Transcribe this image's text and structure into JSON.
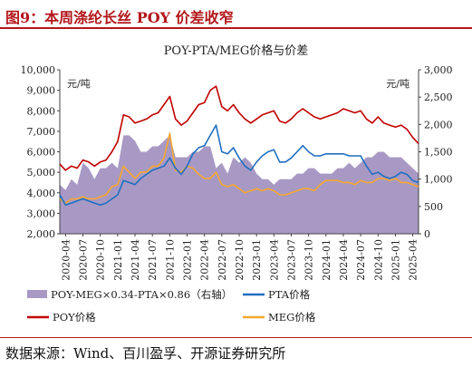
{
  "figure_title": "图9：本周涤纶长丝 POY 价差收窄",
  "source": "数据来源：Wind、百川盈孚、开源证券研究所",
  "chart_data": {
    "type": "line",
    "title": "POY-PTA/MEG价格与价差",
    "left_unit": "元/吨",
    "right_unit": "元/吨",
    "ylim_left": [
      2000,
      10000
    ],
    "ylim_right": [
      0,
      3000
    ],
    "left_ticks": [
      "2,000",
      "3,000",
      "4,000",
      "5,000",
      "6,000",
      "7,000",
      "8,000",
      "9,000",
      "10,000"
    ],
    "right_ticks": [
      "0",
      "500",
      "1,000",
      "1,500",
      "2,000",
      "2,500",
      "3,000"
    ],
    "x_ticks": [
      "2020-04",
      "2020-07",
      "2020-10",
      "2021-01",
      "2021-04",
      "2021-07",
      "2021-10",
      "2022-01",
      "2022-04",
      "2022-07",
      "2022-10",
      "2023-01",
      "2023-04",
      "2023-07",
      "2023-10",
      "2024-01",
      "2024-04",
      "2024-07",
      "2024-10",
      "2025-01",
      "2025-04"
    ],
    "x_range": [
      "2020-03",
      "2025-05"
    ],
    "legend": {
      "spread": "POY-MEG×0.34-PTA×0.86（右轴）",
      "pta": "PTA价格",
      "poy": "POY价格",
      "meg": "MEG价格"
    },
    "colors": {
      "spread": "#a899c4",
      "pta": "#1f6fc1",
      "poy": "#c00000",
      "meg": "#f5a72e",
      "title_red": "#b3171b"
    },
    "series": [
      {
        "name": "POY价格",
        "axis": "left",
        "x": [
          "2020-03",
          "2020-04",
          "2020-05",
          "2020-06",
          "2020-07",
          "2020-08",
          "2020-09",
          "2020-10",
          "2020-11",
          "2020-12",
          "2021-01",
          "2021-02",
          "2021-03",
          "2021-04",
          "2021-05",
          "2021-06",
          "2021-07",
          "2021-08",
          "2021-09",
          "2021-10",
          "2021-11",
          "2021-12",
          "2022-01",
          "2022-02",
          "2022-03",
          "2022-04",
          "2022-05",
          "2022-06",
          "2022-07",
          "2022-08",
          "2022-09",
          "2022-10",
          "2022-11",
          "2022-12",
          "2023-01",
          "2023-02",
          "2023-03",
          "2023-04",
          "2023-05",
          "2023-06",
          "2023-07",
          "2023-08",
          "2023-09",
          "2023-10",
          "2023-11",
          "2023-12",
          "2024-01",
          "2024-02",
          "2024-03",
          "2024-04",
          "2024-05",
          "2024-06",
          "2024-07",
          "2024-08",
          "2024-09",
          "2024-10",
          "2024-11",
          "2024-12",
          "2025-01",
          "2025-02",
          "2025-03",
          "2025-04",
          "2025-05"
        ],
        "values": [
          5400,
          5100,
          5300,
          5200,
          5600,
          5500,
          5300,
          5500,
          5600,
          6000,
          6500,
          7800,
          7700,
          7400,
          7500,
          7600,
          7800,
          7900,
          8300,
          8700,
          7600,
          7300,
          7500,
          7900,
          8300,
          8400,
          9000,
          9200,
          8200,
          8000,
          8300,
          7900,
          7600,
          7400,
          7600,
          7800,
          7900,
          8000,
          7500,
          7400,
          7600,
          7900,
          8100,
          7900,
          7700,
          7600,
          7700,
          7800,
          7900,
          8100,
          8000,
          7900,
          8000,
          7600,
          7400,
          7700,
          7400,
          7300,
          7200,
          7300,
          7100,
          6700,
          6400
        ]
      },
      {
        "name": "PTA价格",
        "axis": "left",
        "x": [
          "2020-03",
          "2020-04",
          "2020-05",
          "2020-06",
          "2020-07",
          "2020-08",
          "2020-09",
          "2020-10",
          "2020-11",
          "2020-12",
          "2021-01",
          "2021-02",
          "2021-03",
          "2021-04",
          "2021-05",
          "2021-06",
          "2021-07",
          "2021-08",
          "2021-09",
          "2021-10",
          "2021-11",
          "2021-12",
          "2022-01",
          "2022-02",
          "2022-03",
          "2022-04",
          "2022-05",
          "2022-06",
          "2022-07",
          "2022-08",
          "2022-09",
          "2022-10",
          "2022-11",
          "2022-12",
          "2023-01",
          "2023-02",
          "2023-03",
          "2023-04",
          "2023-05",
          "2023-06",
          "2023-07",
          "2023-08",
          "2023-09",
          "2023-10",
          "2023-11",
          "2023-12",
          "2024-01",
          "2024-02",
          "2024-03",
          "2024-04",
          "2024-05",
          "2024-06",
          "2024-07",
          "2024-08",
          "2024-09",
          "2024-10",
          "2024-11",
          "2024-12",
          "2025-01",
          "2025-02",
          "2025-03",
          "2025-04",
          "2025-05"
        ],
        "values": [
          3900,
          3400,
          3500,
          3600,
          3700,
          3600,
          3500,
          3400,
          3500,
          3700,
          3900,
          4600,
          4500,
          4400,
          4700,
          4900,
          5100,
          5200,
          5300,
          5700,
          5200,
          4900,
          5300,
          5900,
          6200,
          6300,
          6800,
          7300,
          6000,
          5900,
          6200,
          5700,
          5300,
          5100,
          5500,
          5800,
          6000,
          6100,
          5500,
          5500,
          5700,
          6000,
          6300,
          6000,
          5800,
          5800,
          5900,
          5900,
          5900,
          5900,
          5800,
          5800,
          5800,
          5300,
          4900,
          5000,
          4800,
          4700,
          4800,
          5000,
          4900,
          4600,
          4500
        ]
      },
      {
        "name": "MEG价格",
        "axis": "left",
        "x": [
          "2020-03",
          "2020-04",
          "2020-05",
          "2020-06",
          "2020-07",
          "2020-08",
          "2020-09",
          "2020-10",
          "2020-11",
          "2020-12",
          "2021-01",
          "2021-02",
          "2021-03",
          "2021-04",
          "2021-05",
          "2021-06",
          "2021-07",
          "2021-08",
          "2021-09",
          "2021-10",
          "2021-11",
          "2021-12",
          "2022-01",
          "2022-02",
          "2022-03",
          "2022-04",
          "2022-05",
          "2022-06",
          "2022-07",
          "2022-08",
          "2022-09",
          "2022-10",
          "2022-11",
          "2022-12",
          "2023-01",
          "2023-02",
          "2023-03",
          "2023-04",
          "2023-05",
          "2023-06",
          "2023-07",
          "2023-08",
          "2023-09",
          "2023-10",
          "2023-11",
          "2023-12",
          "2024-01",
          "2024-02",
          "2024-03",
          "2024-04",
          "2024-05",
          "2024-06",
          "2024-07",
          "2024-08",
          "2024-09",
          "2024-10",
          "2024-11",
          "2024-12",
          "2025-01",
          "2025-02",
          "2025-03",
          "2025-04",
          "2025-05"
        ],
        "values": [
          3700,
          3500,
          3700,
          3700,
          3800,
          3700,
          3700,
          3800,
          3900,
          4300,
          4400,
          5300,
          5000,
          4700,
          5000,
          5000,
          5300,
          5300,
          5700,
          6900,
          5100,
          5000,
          5300,
          5200,
          4900,
          4700,
          4700,
          5000,
          4400,
          4300,
          4400,
          4200,
          4000,
          4100,
          4200,
          4100,
          4200,
          4100,
          3900,
          3900,
          4000,
          4100,
          4200,
          4200,
          4100,
          4400,
          4600,
          4600,
          4600,
          4500,
          4500,
          4400,
          4600,
          4500,
          4500,
          4700,
          4700,
          4600,
          4700,
          4500,
          4500,
          4400,
          4300
        ]
      },
      {
        "name": "POY-MEG×0.34-PTA×0.86（右轴）",
        "axis": "right",
        "x": [
          "2020-03",
          "2020-04",
          "2020-05",
          "2020-06",
          "2020-07",
          "2020-08",
          "2020-09",
          "2020-10",
          "2020-11",
          "2020-12",
          "2021-01",
          "2021-02",
          "2021-03",
          "2021-04",
          "2021-05",
          "2021-06",
          "2021-07",
          "2021-08",
          "2021-09",
          "2021-10",
          "2021-11",
          "2021-12",
          "2022-01",
          "2022-02",
          "2022-03",
          "2022-04",
          "2022-05",
          "2022-06",
          "2022-07",
          "2022-08",
          "2022-09",
          "2022-10",
          "2022-11",
          "2022-12",
          "2023-01",
          "2023-02",
          "2023-03",
          "2023-04",
          "2023-05",
          "2023-06",
          "2023-07",
          "2023-08",
          "2023-09",
          "2023-10",
          "2023-11",
          "2023-12",
          "2024-01",
          "2024-02",
          "2024-03",
          "2024-04",
          "2024-05",
          "2024-06",
          "2024-07",
          "2024-08",
          "2024-09",
          "2024-10",
          "2024-11",
          "2024-12",
          "2025-01",
          "2025-02",
          "2025-03",
          "2025-04",
          "2025-05"
        ],
        "values": [
          900,
          800,
          1000,
          900,
          1300,
          1200,
          1000,
          1200,
          1200,
          1300,
          1200,
          1800,
          1800,
          1700,
          1500,
          1500,
          1600,
          1600,
          1700,
          1800,
          1400,
          1400,
          1400,
          1500,
          1500,
          1600,
          1600,
          1200,
          1300,
          1100,
          1400,
          1300,
          1400,
          1300,
          1100,
          1000,
          1000,
          900,
          1000,
          1000,
          1000,
          1100,
          1100,
          1200,
          1200,
          1100,
          1100,
          1100,
          1200,
          1200,
          1300,
          1200,
          1300,
          1400,
          1400,
          1500,
          1500,
          1400,
          1400,
          1400,
          1300,
          1200,
          1100
        ]
      }
    ]
  }
}
